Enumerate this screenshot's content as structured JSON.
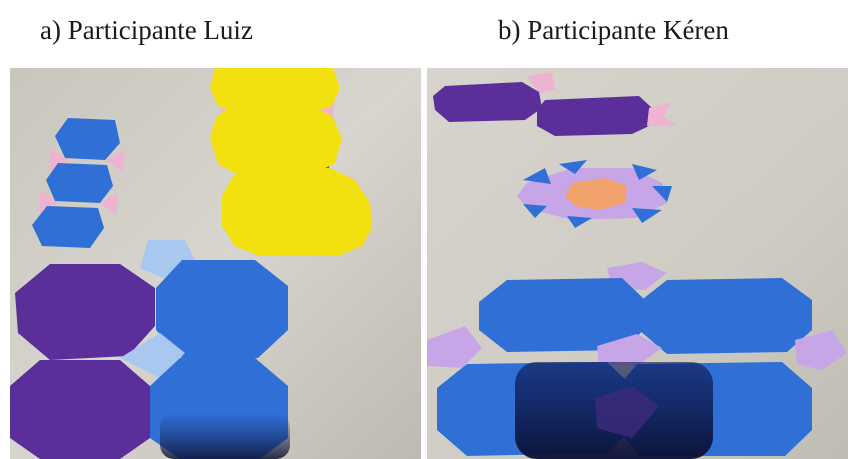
{
  "captions": {
    "a": "a) Participante Luiz",
    "b": "b) Participante Kéren"
  },
  "colors": {
    "background_surface": "#c8c5bd",
    "yellow": "#f2e10f",
    "blue": "#2f6fd6",
    "purple": "#5b2f9a",
    "light_blue": "#a9c8ef",
    "pink": "#efb3d2",
    "lavender": "#c6a6e6",
    "orange": "#f0a26a",
    "shadow": "#0f1f5a"
  }
}
